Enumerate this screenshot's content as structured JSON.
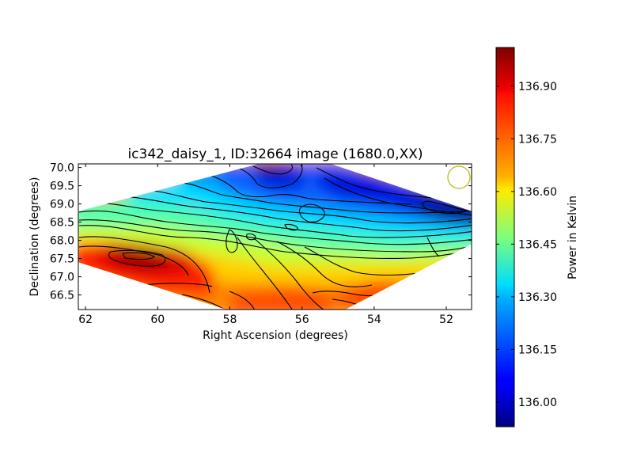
{
  "chart_data": {
    "type": "heatmap",
    "title": "ic342_daisy_1, ID:32664 image (1680.0,XX)",
    "xlabel": "Right Ascension (degrees)",
    "ylabel": "Declination (degrees)",
    "x_ticks": [
      "62",
      "60",
      "58",
      "56",
      "54",
      "52"
    ],
    "y_ticks": [
      "70.0",
      "69.5",
      "69.0",
      "68.5",
      "68.0",
      "67.5",
      "67.0",
      "66.5"
    ],
    "xlim": [
      62.2,
      51.3
    ],
    "ylim": [
      66.1,
      70.1
    ],
    "x_inverted": true,
    "colorbar": {
      "label": "Power in Kelvin",
      "range": [
        135.93,
        137.01
      ],
      "ticks": [
        "136.00",
        "136.15",
        "136.30",
        "136.45",
        "136.60",
        "136.75",
        "136.90"
      ],
      "colormap": "jet"
    },
    "map_region_vertices": [
      [
        62.2,
        68.8
      ],
      [
        57.2,
        70.1
      ],
      [
        55.2,
        70.1
      ],
      [
        51.3,
        68.8
      ],
      [
        51.3,
        67.9
      ],
      [
        54.8,
        66.1
      ],
      [
        58.1,
        66.1
      ],
      [
        62.2,
        67.4
      ]
    ],
    "beam_marker": {
      "ra": 51.65,
      "dec": 69.73,
      "color": "#bdbd10"
    },
    "grid": false
  }
}
